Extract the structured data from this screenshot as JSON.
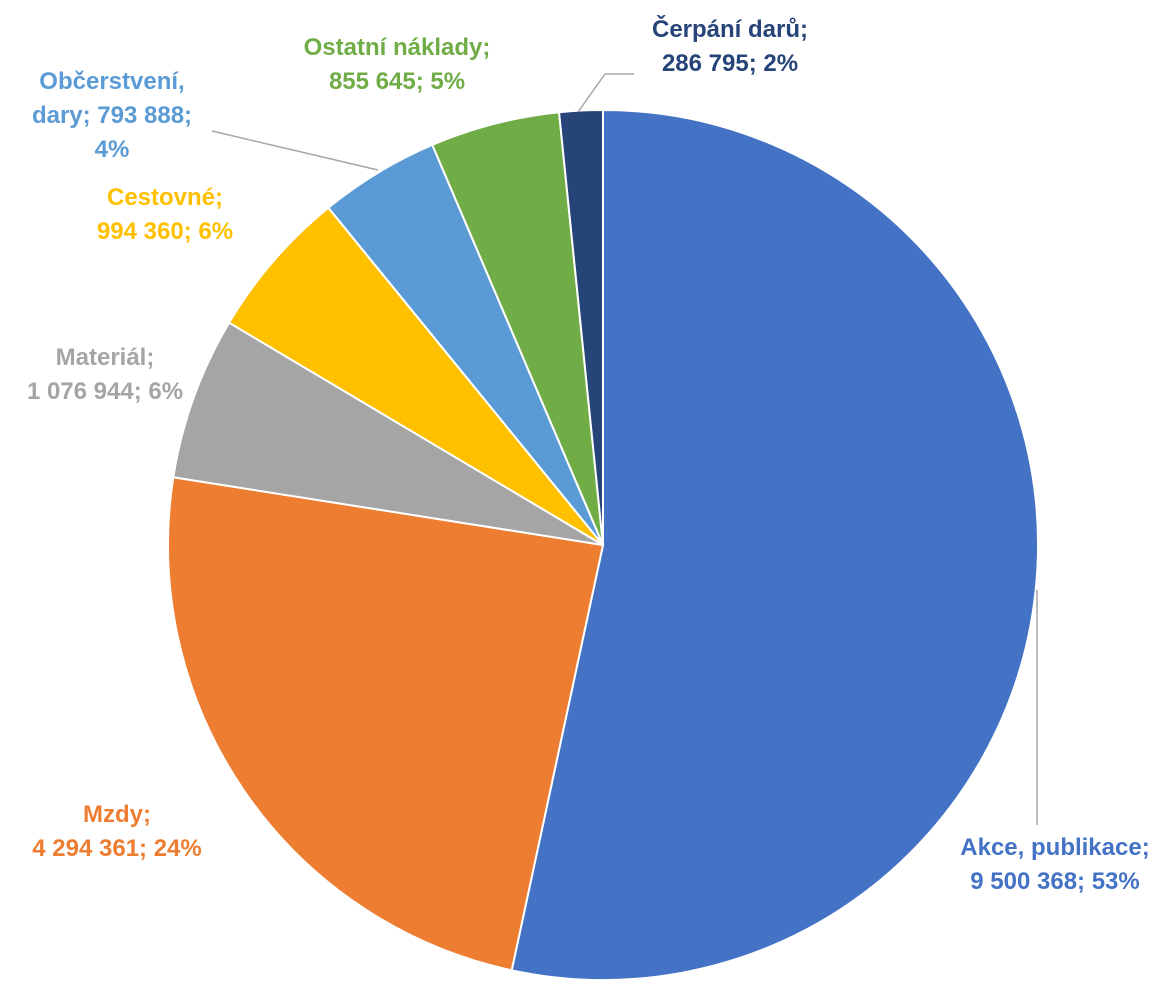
{
  "chart_data": {
    "type": "pie",
    "title": "",
    "slices": [
      {
        "label": "Akce, publikace",
        "value": 9500368,
        "percent": "53%",
        "value_text": "9 500 368",
        "color": "#4472C4",
        "text_color": "#4472C4",
        "lines": [
          "Akce, publikace;",
          "9 500 368; 53%"
        ]
      },
      {
        "label": "Mzdy",
        "value": 4294361,
        "percent": "24%",
        "value_text": "4 294 361",
        "color": "#ED7D31",
        "text_color": "#ED7D31",
        "lines": [
          "Mzdy;",
          "4 294 361; 24%"
        ]
      },
      {
        "label": "Materiál",
        "value": 1076944,
        "percent": "6%",
        "value_text": "1 076 944",
        "color": "#A5A5A5",
        "text_color": "#A5A5A5",
        "lines": [
          "Materiál;",
          "1 076 944; 6%"
        ]
      },
      {
        "label": "Cestovné",
        "value": 994360,
        "percent": "6%",
        "value_text": "994 360",
        "color": "#FFC000",
        "text_color": "#FFC000",
        "lines": [
          "Cestovné;",
          "994 360; 6%"
        ]
      },
      {
        "label": "Občerstvení, dary",
        "value": 793888,
        "percent": "4%",
        "value_text": "793 888",
        "color": "#5B9BD5",
        "text_color": "#5B9BD5",
        "lines": [
          "Občerstvení,",
          "dary; 793 888;",
          "4%"
        ]
      },
      {
        "label": "Ostatní náklady",
        "value": 855645,
        "percent": "5%",
        "value_text": "855 645",
        "color": "#70AD47",
        "text_color": "#70AD47",
        "lines": [
          "Ostatní náklady;",
          "855 645; 5%"
        ]
      },
      {
        "label": "Čerpání darů",
        "value": 286795,
        "percent": "2%",
        "value_text": "286 795",
        "color": "#264478",
        "text_color": "#264478",
        "lines": [
          "Čerpání darů;",
          "286 795; 2%"
        ]
      }
    ]
  }
}
